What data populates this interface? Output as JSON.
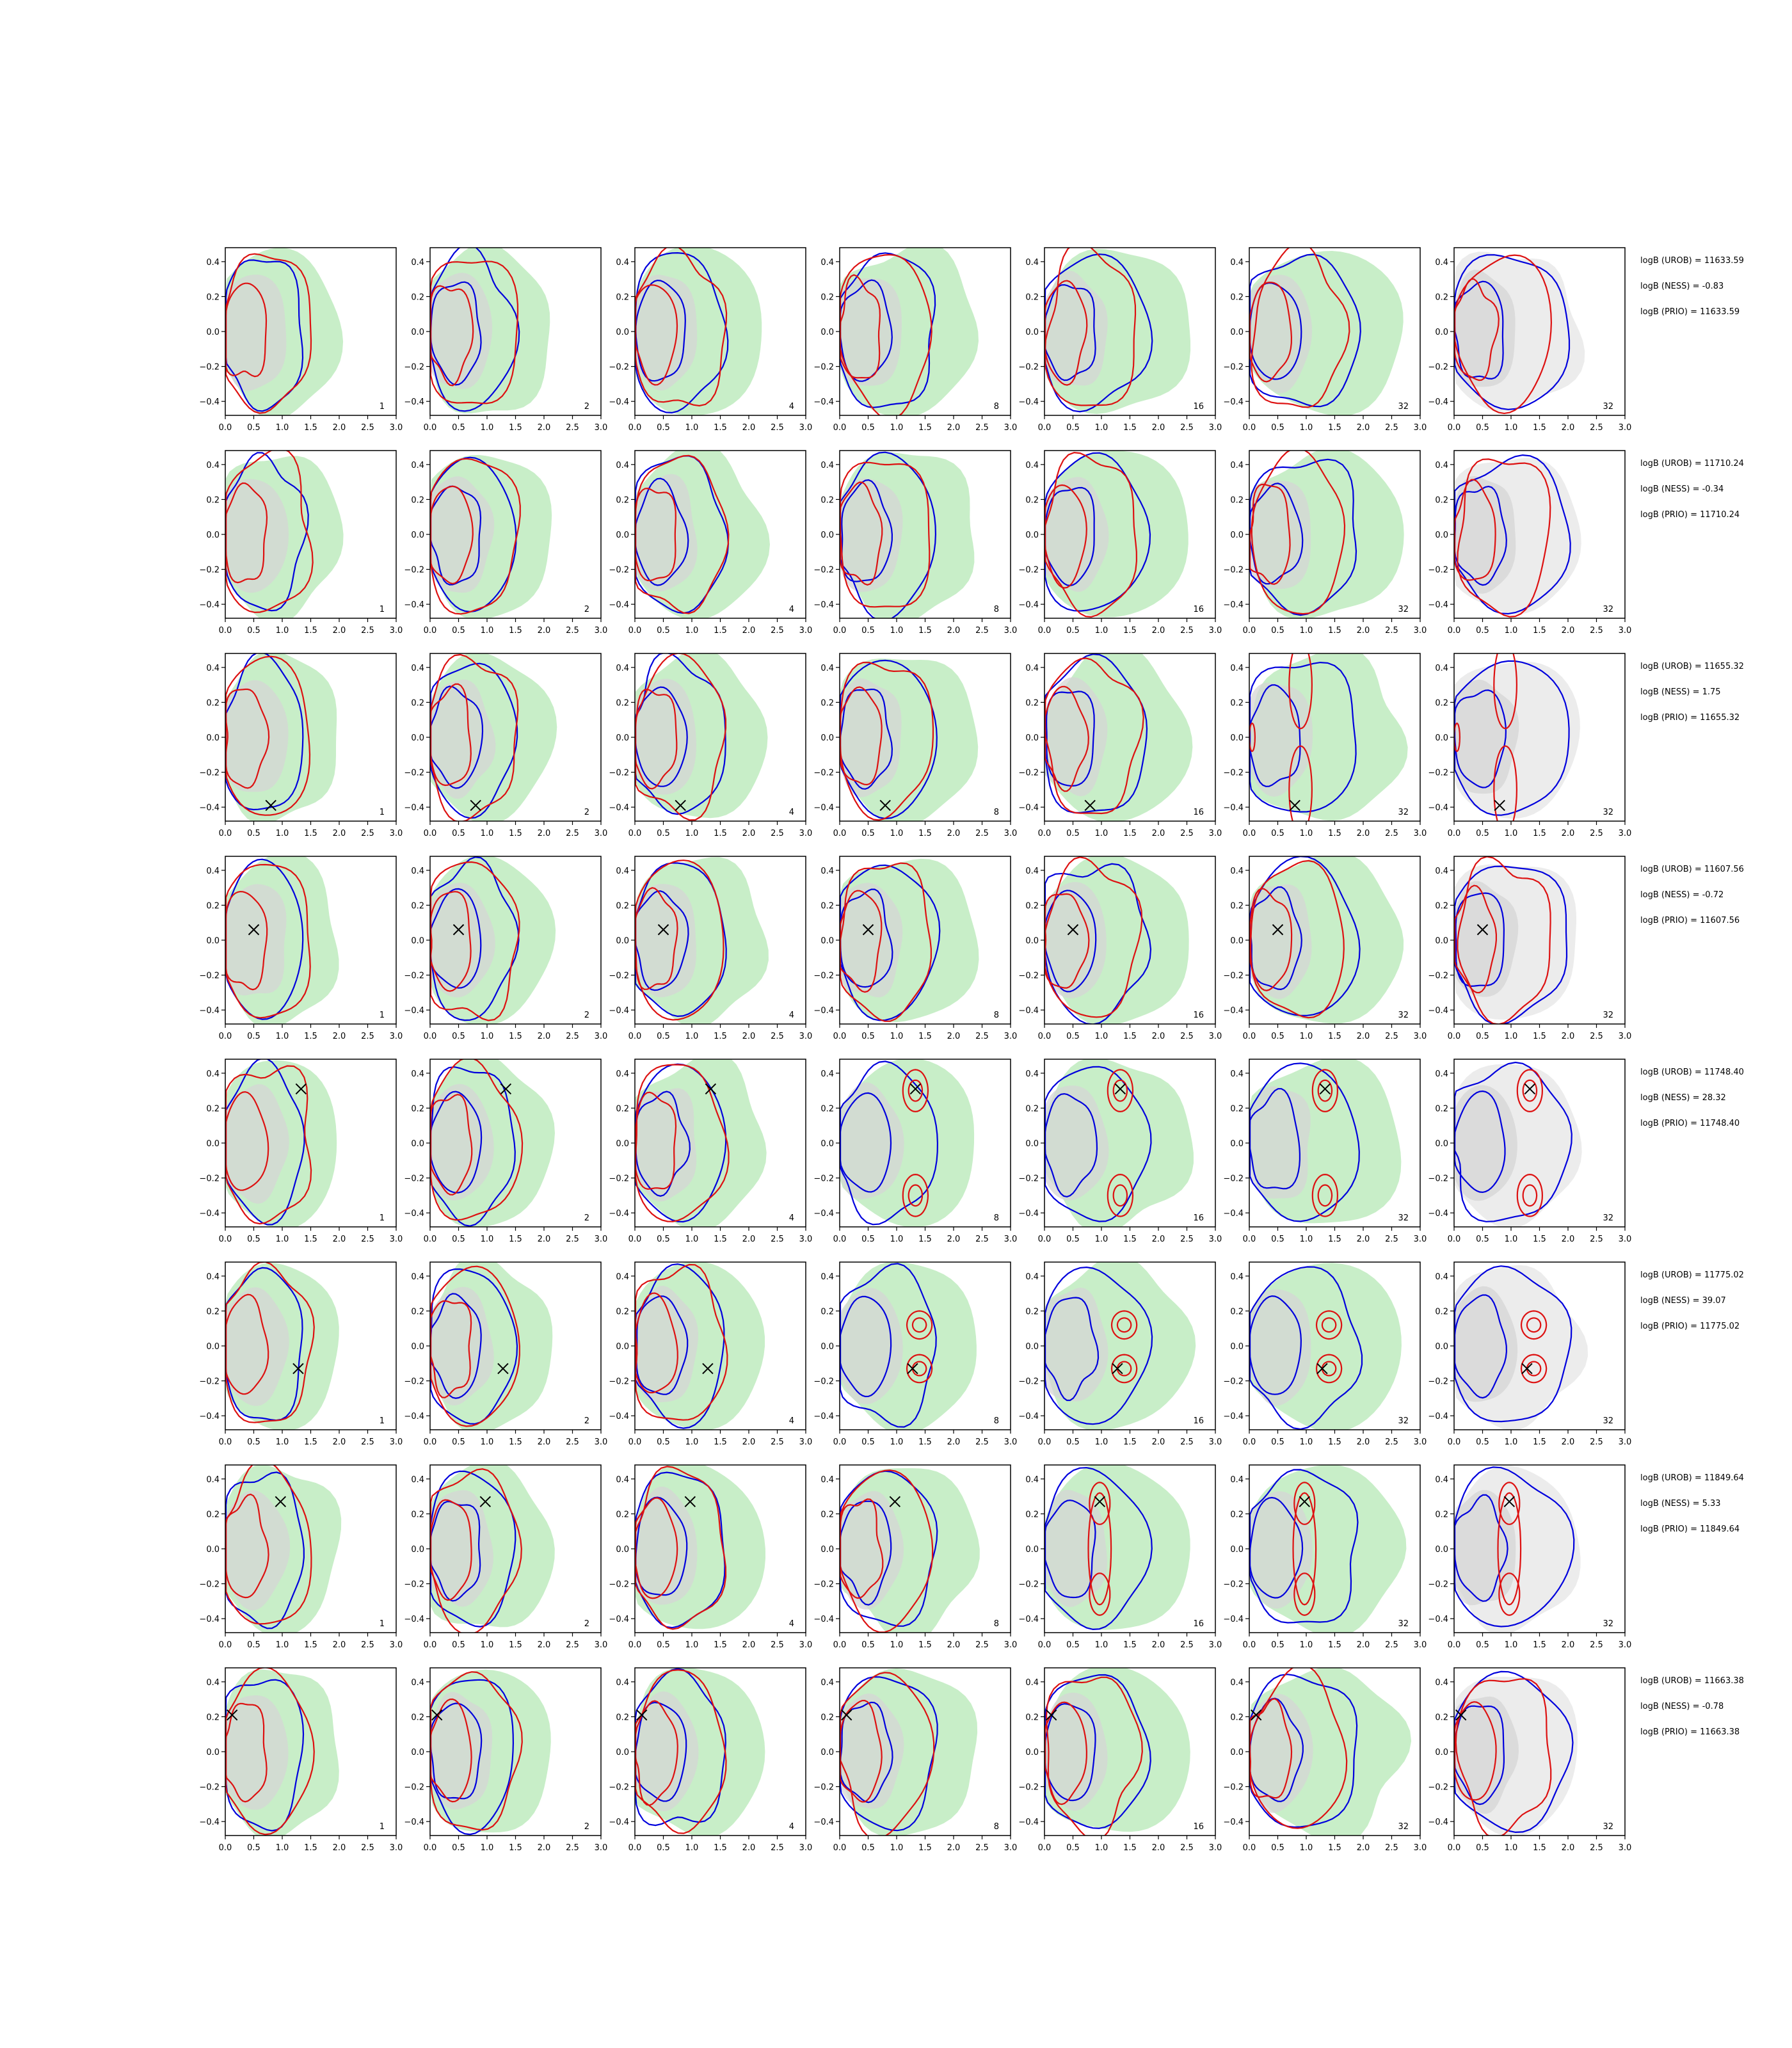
{
  "chart_data": {
    "type": "contour-grid",
    "rows": 8,
    "columns": 7,
    "x_ticks": [
      "0.0",
      "0.5",
      "1.0",
      "1.5",
      "2.0",
      "2.5",
      "3.0"
    ],
    "y_ticks": [
      "0.4",
      "0.2",
      "0.0",
      "−0.2",
      "−0.4"
    ],
    "xlim": [
      0,
      3
    ],
    "ylim": [
      -0.48,
      0.48
    ],
    "column_counts": [
      "1",
      "2",
      "4",
      "8",
      "16",
      "32",
      "32"
    ],
    "colors": {
      "fill_green": "#c8eec8",
      "fill_gray": "#d6d6d6",
      "blue": "#0000dd",
      "red": "#dd1111",
      "marker": "#000000"
    },
    "panel_rows": [
      {
        "marker": null,
        "annotations": [
          "logB (UROB) = 11633.59",
          "logB (NESS) = -0.83",
          "logB (PRIO) = 11633.59"
        ]
      },
      {
        "marker": null,
        "annotations": [
          "logB (UROB) = 11710.24",
          "logB (NESS) = -0.34",
          "logB (PRIO) = 11710.24"
        ]
      },
      {
        "marker": [
          0.8,
          -0.39
        ],
        "annotations": [
          "logB (UROB) = 11655.32",
          "logB (NESS) = 1.75",
          "logB (PRIO) = 11655.32"
        ]
      },
      {
        "marker": [
          0.5,
          0.06
        ],
        "annotations": [
          "logB (UROB) = 11607.56",
          "logB (NESS) = -0.72",
          "logB (PRIO) = 11607.56"
        ]
      },
      {
        "marker": [
          1.33,
          0.31
        ],
        "annotations": [
          "logB (UROB) = 11748.40",
          "logB (NESS) = 28.32",
          "logB (PRIO) = 11748.40"
        ]
      },
      {
        "marker": [
          1.28,
          -0.13
        ],
        "annotations": [
          "logB (UROB) = 11775.02",
          "logB (NESS) = 39.07",
          "logB (PRIO) = 11775.02"
        ]
      },
      {
        "marker": [
          0.97,
          0.27
        ],
        "annotations": [
          "logB (UROB) = 11849.64",
          "logB (NESS) = 5.33",
          "logB (PRIO) = 11849.64"
        ]
      },
      {
        "marker": [
          0.12,
          0.21
        ],
        "annotations": [
          "logB (UROB) = 11663.38",
          "logB (NESS) = -0.78",
          "logB (PRIO) = 11663.38"
        ]
      }
    ]
  }
}
